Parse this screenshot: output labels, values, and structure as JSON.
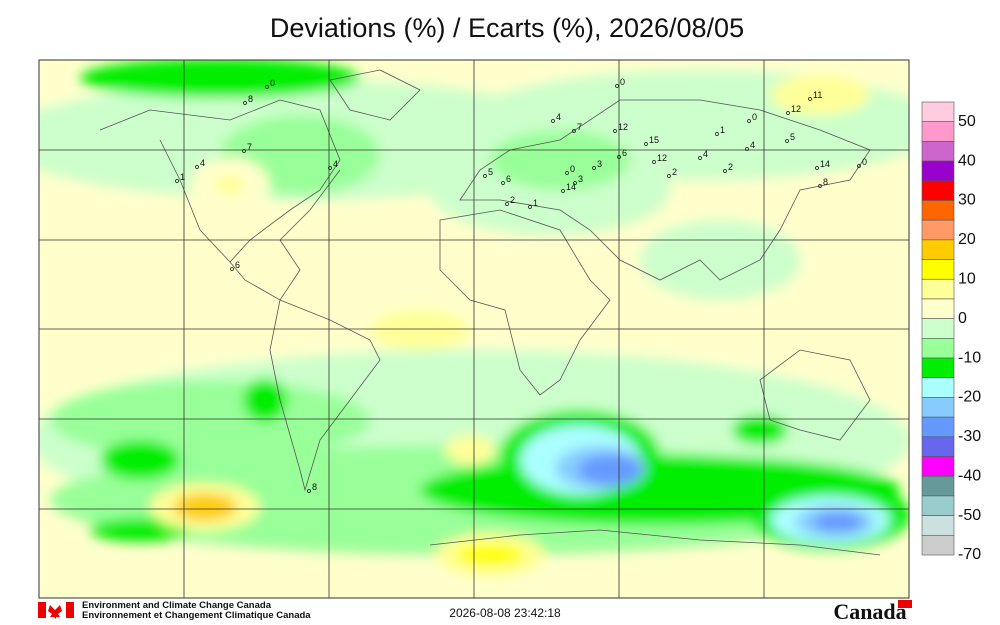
{
  "title": "Deviations (%) / Ecarts (%), 2026/08/05",
  "colorbar": {
    "colors": [
      "#ffcce0",
      "#ff99cc",
      "#cc66cc",
      "#9900cc",
      "#ff0000",
      "#ff6600",
      "#ff9966",
      "#ffcc00",
      "#ffff00",
      "#ffff99",
      "#ffffcc",
      "#ccffcc",
      "#99ff99",
      "#00ee00",
      "#aaffff",
      "#88ccff",
      "#6699ff",
      "#6666ee",
      "#ff00ff",
      "#669999",
      "#99cccc",
      "#cce0e0",
      "#cccccc"
    ],
    "labels": [
      50,
      40,
      30,
      20,
      10,
      0,
      -10,
      -20,
      -30,
      -40,
      -50,
      -70
    ]
  },
  "stations": [
    0,
    8,
    4,
    1,
    7,
    4,
    6,
    8,
    0,
    4,
    7,
    12,
    1,
    0,
    12,
    11,
    5,
    4,
    15,
    12,
    4,
    2,
    2,
    14,
    8,
    0,
    6,
    3,
    0,
    3,
    14,
    1,
    2,
    5,
    6
  ],
  "footer": {
    "agency_en": "Environment and Climate Change Canada",
    "agency_fr": "Environnement et Changement Climatique Canada",
    "timestamp": "2026-08-08 23:42:18",
    "wordmark": "Canada"
  }
}
